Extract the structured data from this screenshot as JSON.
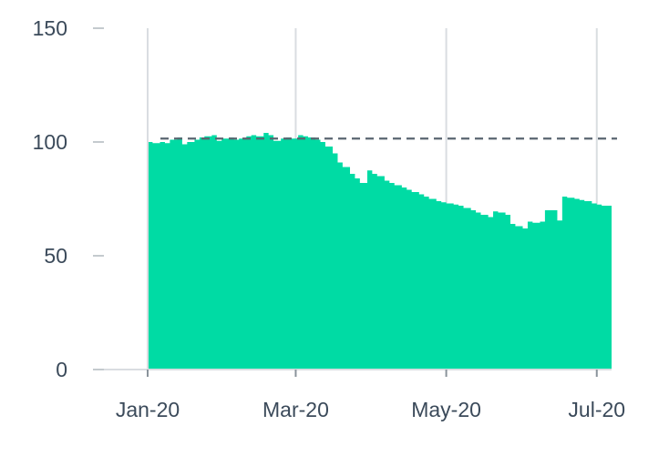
{
  "chart_data": {
    "type": "area",
    "title": "",
    "xlabel": "",
    "ylabel": "",
    "ylim": [
      0,
      150
    ],
    "yticks": [
      0,
      50,
      100,
      150
    ],
    "xlim": [
      "2020-01-01",
      "2020-07-07"
    ],
    "xticks": [
      {
        "date": "2020-01-01",
        "label": "Jan-20"
      },
      {
        "date": "2020-03-01",
        "label": "Mar-20"
      },
      {
        "date": "2020-05-01",
        "label": "May-20"
      },
      {
        "date": "2020-07-01",
        "label": "Jul-20"
      }
    ],
    "grid": {
      "vertical": true,
      "horizontal": false
    },
    "legend": "none",
    "reference_line": {
      "value": 101.5,
      "style": "dashed",
      "color": "#5a6570"
    },
    "series": [
      {
        "color": "#00dba4",
        "x": [
          "2020-01-01",
          "2020-01-03",
          "2020-01-06",
          "2020-01-08",
          "2020-01-10",
          "2020-01-13",
          "2020-01-15",
          "2020-01-17",
          "2020-01-20",
          "2020-01-22",
          "2020-01-24",
          "2020-01-27",
          "2020-01-29",
          "2020-01-31",
          "2020-02-03",
          "2020-02-05",
          "2020-02-07",
          "2020-02-10",
          "2020-02-12",
          "2020-02-14",
          "2020-02-17",
          "2020-02-19",
          "2020-02-21",
          "2020-02-24",
          "2020-02-26",
          "2020-02-28",
          "2020-03-02",
          "2020-03-04",
          "2020-03-06",
          "2020-03-09",
          "2020-03-11",
          "2020-03-13",
          "2020-03-16",
          "2020-03-18",
          "2020-03-20",
          "2020-03-23",
          "2020-03-25",
          "2020-03-27",
          "2020-03-30",
          "2020-04-01",
          "2020-04-03",
          "2020-04-06",
          "2020-04-08",
          "2020-04-10",
          "2020-04-13",
          "2020-04-15",
          "2020-04-17",
          "2020-04-20",
          "2020-04-22",
          "2020-04-24",
          "2020-04-27",
          "2020-04-29",
          "2020-05-01",
          "2020-05-04",
          "2020-05-06",
          "2020-05-08",
          "2020-05-11",
          "2020-05-13",
          "2020-05-15",
          "2020-05-18",
          "2020-05-20",
          "2020-05-22",
          "2020-05-25",
          "2020-05-27",
          "2020-05-29",
          "2020-06-01",
          "2020-06-03",
          "2020-06-05",
          "2020-06-08",
          "2020-06-10",
          "2020-06-12",
          "2020-06-15",
          "2020-06-17",
          "2020-06-19",
          "2020-06-22",
          "2020-06-24",
          "2020-06-26",
          "2020-06-29",
          "2020-07-01",
          "2020-07-03",
          "2020-07-06",
          "2020-07-07"
        ],
        "values": [
          100,
          99.5,
          100,
          99.5,
          101,
          102,
          99,
          100,
          101,
          102,
          102.5,
          103,
          100.5,
          101.5,
          102,
          101,
          101.5,
          102.5,
          103,
          102.5,
          104,
          103,
          100.5,
          101.5,
          102,
          101.5,
          103,
          102.5,
          102,
          101,
          100,
          98,
          95,
          91,
          89,
          86,
          84,
          82,
          87.5,
          86,
          85,
          83,
          82,
          81,
          80,
          79,
          78,
          77,
          76,
          75,
          74,
          73.5,
          73,
          72.5,
          72,
          71,
          70,
          69,
          68,
          67,
          69.5,
          69,
          68,
          64,
          63,
          62,
          65,
          64.5,
          65,
          70,
          70,
          65.5,
          76,
          75.5,
          75,
          74.5,
          74,
          73,
          72.5,
          72,
          72,
          72
        ]
      }
    ]
  }
}
